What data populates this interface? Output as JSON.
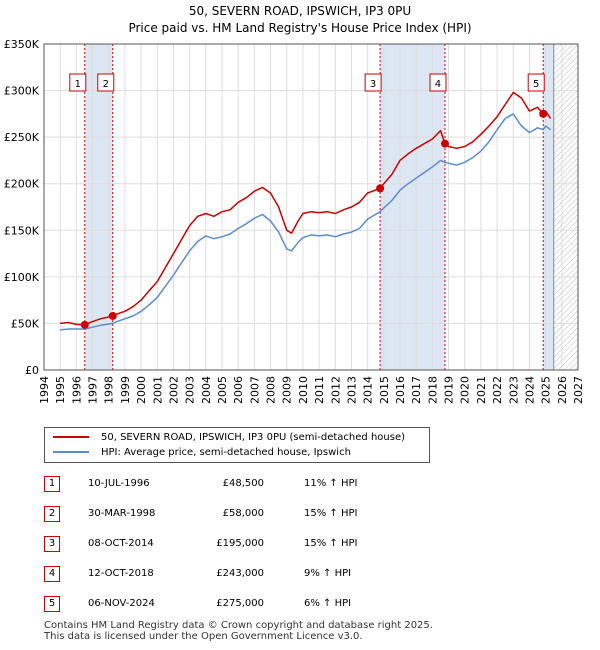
{
  "title_line1": "50, SEVERN ROAD, IPSWICH, IP3 0PU",
  "title_line2": "Price paid vs. HM Land Registry's House Price Index (HPI)",
  "colors": {
    "property": "#cc0000",
    "hpi": "#5b8ccc",
    "shade": "#dde6f3",
    "grid": "#dddddd",
    "future_hatch": "#bbbbbb"
  },
  "legend": {
    "property_label": "50, SEVERN ROAD, IPSWICH, IP3 0PU (semi-detached house)",
    "hpi_label": "HPI: Average price, semi-detached house, Ipswich"
  },
  "transactions": [
    {
      "num": "1",
      "date": "10-JUL-1996",
      "price": "£48,500",
      "hpi": "11% ↑ HPI"
    },
    {
      "num": "2",
      "date": "30-MAR-1998",
      "price": "£58,000",
      "hpi": "15% ↑ HPI"
    },
    {
      "num": "3",
      "date": "08-OCT-2014",
      "price": "£195,000",
      "hpi": "15% ↑ HPI"
    },
    {
      "num": "4",
      "date": "12-OCT-2018",
      "price": "£243,000",
      "hpi": "9% ↑ HPI"
    },
    {
      "num": "5",
      "date": "06-NOV-2024",
      "price": "£275,000",
      "hpi": "6% ↑ HPI"
    }
  ],
  "footer": {
    "line1": "Contains HM Land Registry data © Crown copyright and database right 2025.",
    "line2": "This data is licensed under the Open Government Licence v3.0."
  },
  "chart_data": {
    "type": "line",
    "title": "Price paid vs. HM Land Registry's House Price Index (HPI)",
    "xlim": [
      1994,
      2027
    ],
    "ylim": [
      0,
      350000
    ],
    "x_ticks": [
      "1994",
      "1995",
      "1996",
      "1997",
      "1998",
      "1999",
      "2000",
      "2001",
      "2002",
      "2003",
      "2004",
      "2005",
      "2006",
      "2007",
      "2008",
      "2009",
      "2010",
      "2011",
      "2012",
      "2013",
      "2014",
      "2015",
      "2016",
      "2017",
      "2018",
      "2019",
      "2020",
      "2021",
      "2022",
      "2023",
      "2024",
      "2025",
      "2026",
      "2027"
    ],
    "y_ticks": [
      {
        "value": 0,
        "label": "£0"
      },
      {
        "value": 50000,
        "label": "£50K"
      },
      {
        "value": 100000,
        "label": "£100K"
      },
      {
        "value": 150000,
        "label": "£150K"
      },
      {
        "value": 200000,
        "label": "£200K"
      },
      {
        "value": 250000,
        "label": "£250K"
      },
      {
        "value": 300000,
        "label": "£300K"
      },
      {
        "value": 350000,
        "label": "£350K"
      }
    ],
    "future_from": 2025.5,
    "ownership_periods": [
      [
        1996.52,
        1998.25
      ],
      [
        2014.77,
        2018.78
      ],
      [
        2024.85,
        2025.5
      ]
    ],
    "markers": [
      {
        "label": "1",
        "x": 1996.52,
        "y": 48500
      },
      {
        "label": "2",
        "x": 1998.25,
        "y": 58000
      },
      {
        "label": "3",
        "x": 2014.77,
        "y": 195000
      },
      {
        "label": "4",
        "x": 2018.78,
        "y": 243000
      },
      {
        "label": "5",
        "x": 2024.85,
        "y": 275000
      }
    ],
    "series": [
      {
        "name": "50, SEVERN ROAD, IPSWICH, IP3 0PU (semi-detached house)",
        "x": [
          1995.0,
          1995.5,
          1996.0,
          1996.52,
          1997.0,
          1997.5,
          1998.25,
          1998.5,
          1999.0,
          1999.5,
          2000.0,
          2000.5,
          2001.0,
          2001.5,
          2002.0,
          2002.5,
          2003.0,
          2003.5,
          2004.0,
          2004.5,
          2005.0,
          2005.5,
          2006.0,
          2006.5,
          2007.0,
          2007.5,
          2008.0,
          2008.5,
          2009.0,
          2009.3,
          2009.7,
          2010.0,
          2010.5,
          2011.0,
          2011.5,
          2012.0,
          2012.5,
          2013.0,
          2013.5,
          2014.0,
          2014.77,
          2015.0,
          2015.5,
          2016.0,
          2016.5,
          2017.0,
          2017.5,
          2018.0,
          2018.5,
          2018.78,
          2019.0,
          2019.5,
          2020.0,
          2020.5,
          2021.0,
          2021.5,
          2022.0,
          2022.5,
          2023.0,
          2023.5,
          2024.0,
          2024.5,
          2024.85,
          2025.0,
          2025.3
        ],
        "values": [
          50000,
          51000,
          49000,
          48500,
          52000,
          55000,
          58000,
          60000,
          63000,
          68000,
          75000,
          85000,
          95000,
          110000,
          125000,
          140000,
          155000,
          165000,
          168000,
          165000,
          170000,
          172000,
          180000,
          185000,
          192000,
          196000,
          190000,
          175000,
          150000,
          147000,
          160000,
          168000,
          170000,
          169000,
          170000,
          168000,
          172000,
          175000,
          180000,
          190000,
          195000,
          200000,
          210000,
          225000,
          232000,
          238000,
          243000,
          248000,
          257000,
          243000,
          240000,
          238000,
          240000,
          245000,
          253000,
          262000,
          272000,
          285000,
          298000,
          292000,
          278000,
          282000,
          275000,
          278000,
          270000
        ]
      },
      {
        "name": "HPI: Average price, semi-detached house, Ipswich",
        "x": [
          1995.0,
          1995.5,
          1996.0,
          1996.52,
          1997.0,
          1997.5,
          1998.25,
          1998.5,
          1999.0,
          1999.5,
          2000.0,
          2000.5,
          2001.0,
          2001.5,
          2002.0,
          2002.5,
          2003.0,
          2003.5,
          2004.0,
          2004.5,
          2005.0,
          2005.5,
          2006.0,
          2006.5,
          2007.0,
          2007.5,
          2008.0,
          2008.5,
          2009.0,
          2009.3,
          2009.7,
          2010.0,
          2010.5,
          2011.0,
          2011.5,
          2012.0,
          2012.5,
          2013.0,
          2013.5,
          2014.0,
          2014.77,
          2015.0,
          2015.5,
          2016.0,
          2016.5,
          2017.0,
          2017.5,
          2018.0,
          2018.5,
          2018.78,
          2019.0,
          2019.5,
          2020.0,
          2020.5,
          2021.0,
          2021.5,
          2022.0,
          2022.5,
          2023.0,
          2023.5,
          2024.0,
          2024.5,
          2024.85,
          2025.0,
          2025.3
        ],
        "values": [
          43000,
          44000,
          44000,
          44000,
          46000,
          48000,
          50000,
          52000,
          55000,
          58000,
          63000,
          70000,
          78000,
          90000,
          102000,
          115000,
          128000,
          138000,
          144000,
          141000,
          143000,
          146000,
          152000,
          157000,
          163000,
          167000,
          160000,
          148000,
          130000,
          128000,
          137000,
          142000,
          145000,
          144000,
          145000,
          143000,
          146000,
          148000,
          152000,
          162000,
          170000,
          174000,
          182000,
          193000,
          200000,
          206000,
          212000,
          218000,
          225000,
          223000,
          222000,
          220000,
          223000,
          228000,
          235000,
          245000,
          258000,
          270000,
          275000,
          262000,
          255000,
          260000,
          258000,
          262000,
          258000
        ]
      }
    ]
  }
}
